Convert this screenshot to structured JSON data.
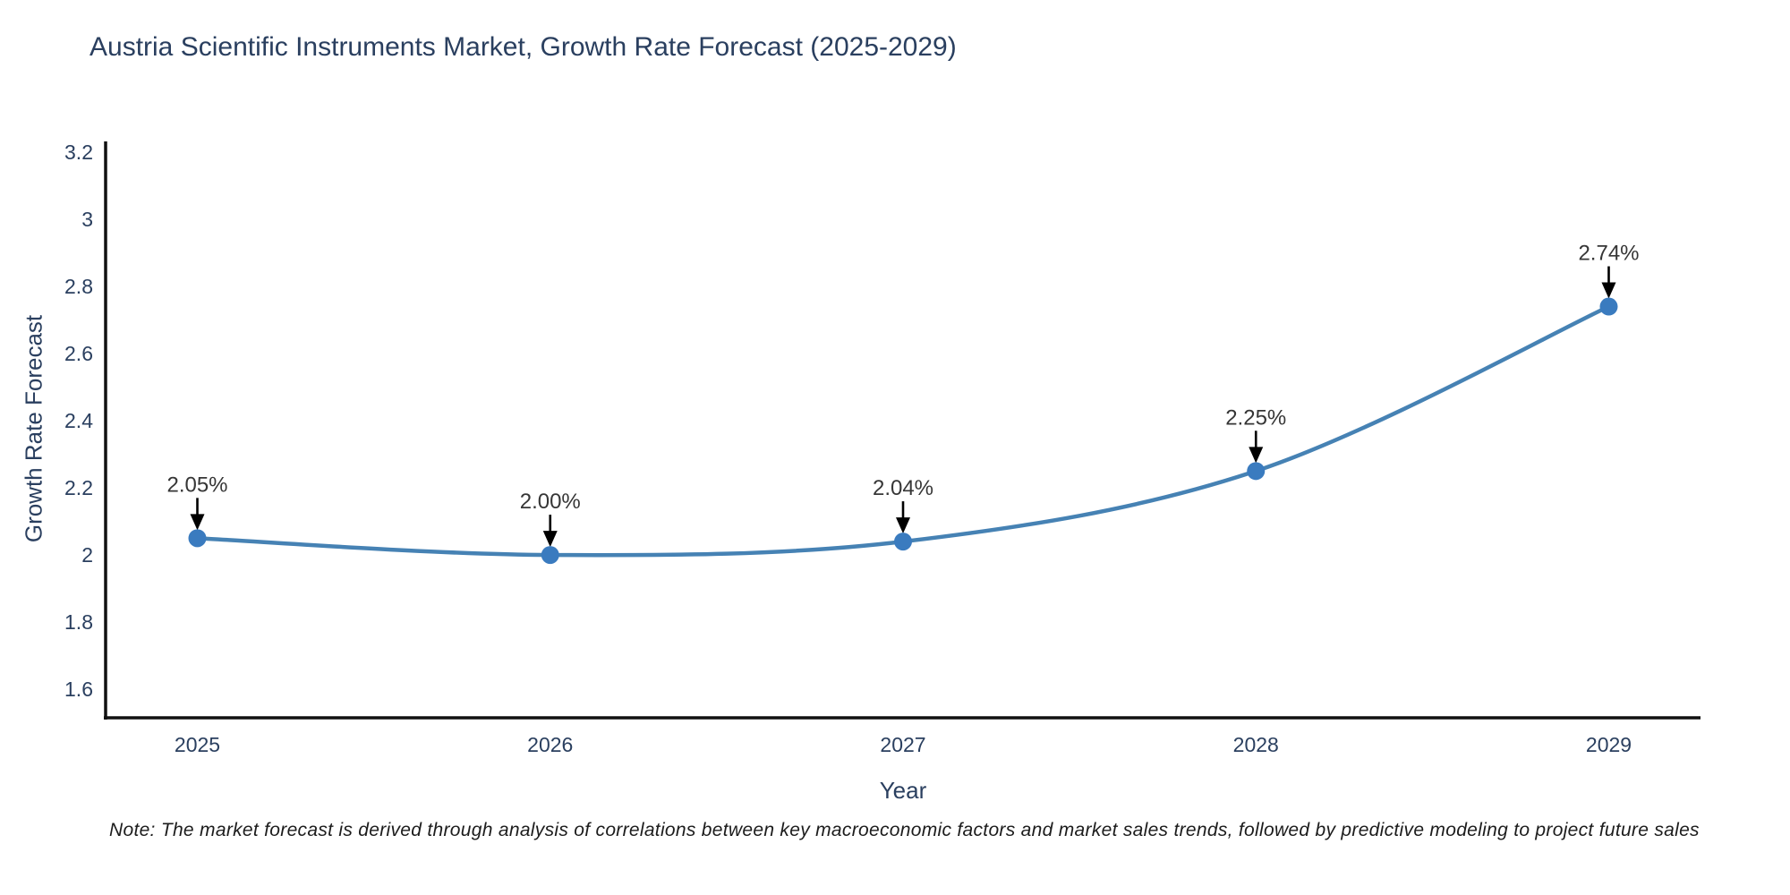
{
  "header": {
    "title": "Austria Scientific Instruments Market, Growth Rate Forecast (2025-2029)"
  },
  "note": {
    "text": "Note: The market forecast is derived through analysis of correlations between key macroeconomic factors and market sales trends, followed by predictive modeling to project future sales"
  },
  "chart_data": {
    "type": "line",
    "title": "Austria Scientific Instruments Market, Growth Rate Forecast (2025-2029)",
    "xlabel": "Year",
    "ylabel": "Growth Rate Forecast",
    "x": [
      2025,
      2026,
      2027,
      2028,
      2029
    ],
    "values": [
      2.05,
      2.0,
      2.04,
      2.25,
      2.74
    ],
    "point_labels": [
      "2.05%",
      "2.00%",
      "2.04%",
      "2.25%",
      "2.74%"
    ],
    "xtick_labels": [
      "2025",
      "2026",
      "2027",
      "2028",
      "2029"
    ],
    "yticks": [
      1.6,
      1.8,
      2.0,
      2.2,
      2.4,
      2.6,
      2.8,
      3.0,
      3.2
    ],
    "ytick_labels": [
      "1.6",
      "1.8",
      "2",
      "2.2",
      "2.4",
      "2.6",
      "2.8",
      "3",
      "3.2"
    ],
    "xlim": [
      2024.74,
      2029.26
    ],
    "ylim": [
      1.515,
      3.232
    ],
    "grid": false,
    "legend": "none",
    "line_shape": "spline",
    "marker": "circle",
    "annotation_arrows": true,
    "colors": {
      "line": "#4682b4",
      "marker": "#3a7bbf",
      "axis": "#111111",
      "tick_text": "#2a3f5f",
      "annotation_text": "#363636",
      "arrow": "#000000",
      "background": "#ffffff"
    }
  }
}
